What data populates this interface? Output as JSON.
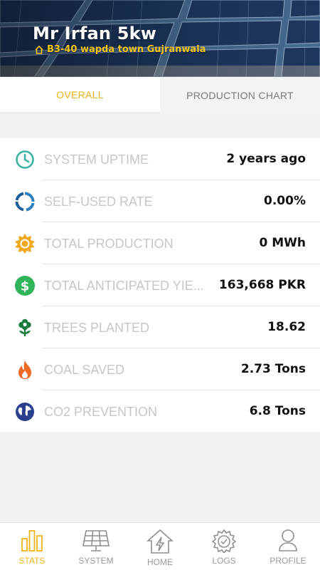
{
  "header": {
    "title": "Mr Irfan 5kw",
    "address": "B3-40 wapda town Gujranwala"
  },
  "tabs": [
    {
      "label": "OVERALL",
      "active": true
    },
    {
      "label": "PRODUCTION CHART",
      "active": false
    }
  ],
  "stats": [
    {
      "icon": "clock-icon",
      "label": "SYSTEM UPTIME",
      "value": "2 years ago"
    },
    {
      "icon": "ring-chart-icon",
      "label": "SELF-USED RATE",
      "value": "0.00%"
    },
    {
      "icon": "sun-icon",
      "label": "TOTAL PRODUCTION",
      "value": "0 MWh"
    },
    {
      "icon": "dollar-icon",
      "label": "TOTAL ANTICIPATED YIE...",
      "value": "163,668 PKR"
    },
    {
      "icon": "plant-icon",
      "label": "TREES PLANTED",
      "value": "18.62"
    },
    {
      "icon": "flame-icon",
      "label": "COAL SAVED",
      "value": "2.73 Tons"
    },
    {
      "icon": "globe-icon",
      "label": "CO2 PREVENTION",
      "value": "6.8 Tons"
    }
  ],
  "nav": [
    {
      "icon": "bar-chart-icon",
      "label": "STATS",
      "active": true
    },
    {
      "icon": "solar-panel-icon",
      "label": "SYSTEM",
      "active": false
    },
    {
      "icon": "home-bolt-icon",
      "label": "HOME",
      "active": false
    },
    {
      "icon": "gear-check-icon",
      "label": "LOGS",
      "active": false
    },
    {
      "icon": "user-icon",
      "label": "PROFILE",
      "active": false
    }
  ],
  "colors": {
    "accent": "#f0b51b",
    "address": "#f5c518",
    "label": "#c7c7c9",
    "value": "#111111"
  }
}
